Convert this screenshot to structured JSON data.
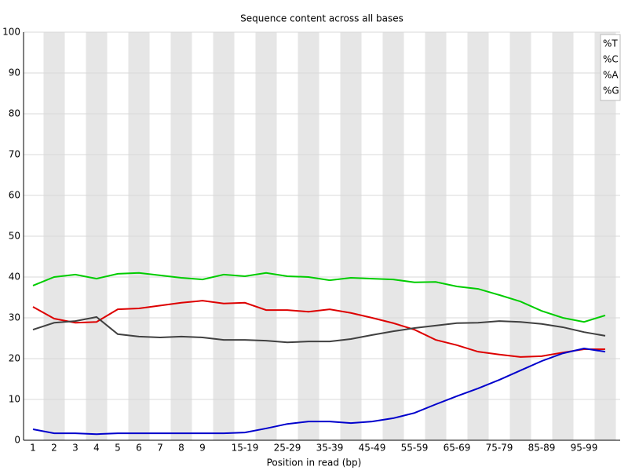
{
  "chart_data": {
    "type": "line",
    "title": "Sequence content across all bases",
    "x_label": "Position in read (bp)",
    "categories": [
      "1",
      "2",
      "3",
      "4",
      "5",
      "6",
      "7",
      "8",
      "9",
      null,
      "15-19",
      null,
      "25-29",
      null,
      "35-39",
      null,
      "45-49",
      null,
      "55-59",
      null,
      "65-69",
      null,
      "75-79",
      null,
      "85-89",
      null,
      "95-99",
      null
    ],
    "series": [
      {
        "name": "%T",
        "color": "#dd0000",
        "values": [
          32.7,
          29.8,
          28.8,
          29,
          32.1,
          32.3,
          33,
          33.7,
          34.2,
          33.5,
          33.7,
          31.9,
          31.9,
          31.5,
          32.1,
          31.2,
          30,
          28.7,
          27.1,
          24.6,
          23.3,
          21.7,
          21,
          20.4,
          20.6,
          21.5,
          22.3,
          22.3
        ]
      },
      {
        "name": "%C",
        "color": "#0000cc",
        "values": [
          2.7,
          1.7,
          1.7,
          1.5,
          1.7,
          1.7,
          1.7,
          1.7,
          1.7,
          1.7,
          1.9,
          2.9,
          4,
          4.6,
          4.6,
          4.2,
          4.6,
          5.4,
          6.7,
          8.8,
          10.8,
          12.7,
          14.8,
          17.1,
          19.4,
          21.3,
          22.5,
          21.7
        ]
      },
      {
        "name": "%A",
        "color": "#00cc00",
        "values": [
          37.9,
          40,
          40.6,
          39.6,
          40.8,
          41,
          40.4,
          39.8,
          39.4,
          40.6,
          40.2,
          41,
          40.2,
          40,
          39.2,
          39.8,
          39.6,
          39.4,
          38.7,
          38.8,
          37.7,
          37.1,
          35.6,
          34,
          31.7,
          30,
          29,
          30.6
        ]
      },
      {
        "name": "%G",
        "color": "#404040",
        "values": [
          27.1,
          28.8,
          29.2,
          30.2,
          26,
          25.4,
          25.2,
          25.4,
          25.2,
          24.6,
          24.6,
          24.4,
          24,
          24.2,
          24.2,
          24.8,
          25.8,
          26.7,
          27.5,
          28.1,
          28.7,
          28.8,
          29.2,
          29,
          28.5,
          27.7,
          26.5,
          25.6
        ]
      }
    ],
    "ylim": [
      0,
      100
    ],
    "yticks": [
      0,
      10,
      20,
      30,
      40,
      50,
      60,
      70,
      80,
      90,
      100
    ],
    "grid": true,
    "legend": "top-right"
  }
}
